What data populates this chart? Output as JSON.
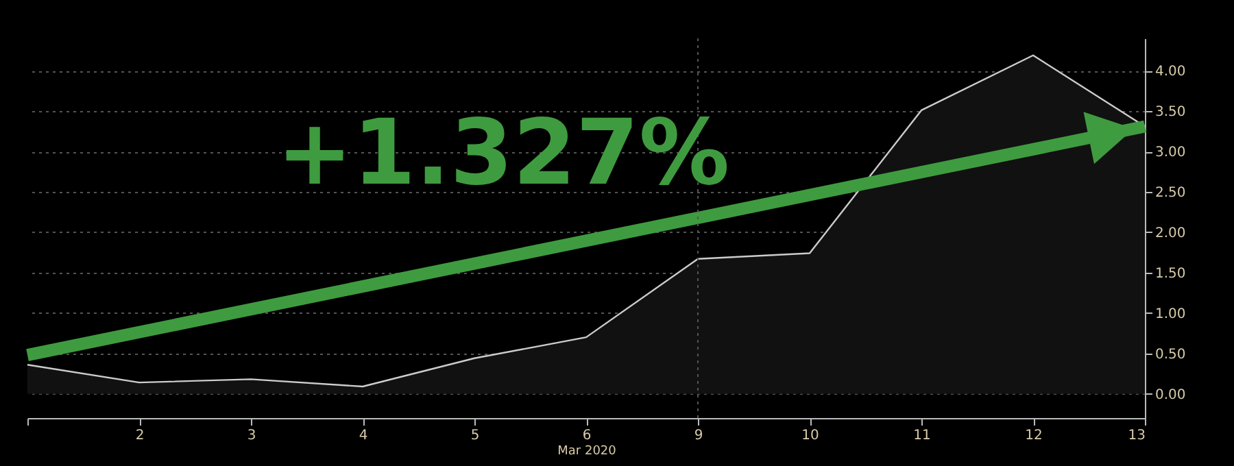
{
  "chart_data": {
    "type": "area",
    "categories": [
      null,
      "2",
      "3",
      "4",
      "5",
      "6",
      "9",
      "10",
      "11",
      "12",
      "13"
    ],
    "series": [
      {
        "color": "#cccccc",
        "values": [
          0.36,
          0.14,
          0.18,
          0.09,
          0.44,
          0.7,
          1.67,
          1.74,
          3.51,
          4.19,
          3.31
        ]
      },
      {
        "type": "line",
        "color": "#3f9b3f",
        "values": [
          0.48,
          null,
          null,
          null,
          null,
          null,
          null,
          null,
          null,
          null,
          3.31
        ]
      }
    ],
    "xlabel": "Mar 2020",
    "ylim": [
      -0.3,
      4.4
    ],
    "yticks": [
      {
        "value": 0,
        "label": "0.00"
      },
      {
        "value": 0.5,
        "label": "0.50"
      },
      {
        "value": 1,
        "label": "1.00"
      },
      {
        "value": 1.5,
        "label": "1.50"
      },
      {
        "value": 2,
        "label": "2.00"
      },
      {
        "value": 2.5,
        "label": "2.50"
      },
      {
        "value": 3,
        "label": "3.00"
      },
      {
        "value": 3.5,
        "label": "3.50"
      },
      {
        "value": 4,
        "label": "4.00"
      }
    ],
    "grid": "y",
    "ref_lines": [
      {
        "axis": "x",
        "value": "9",
        "line_style": "dotted",
        "color": "#555555"
      }
    ],
    "annotations": [
      "+1.327%"
    ]
  }
}
